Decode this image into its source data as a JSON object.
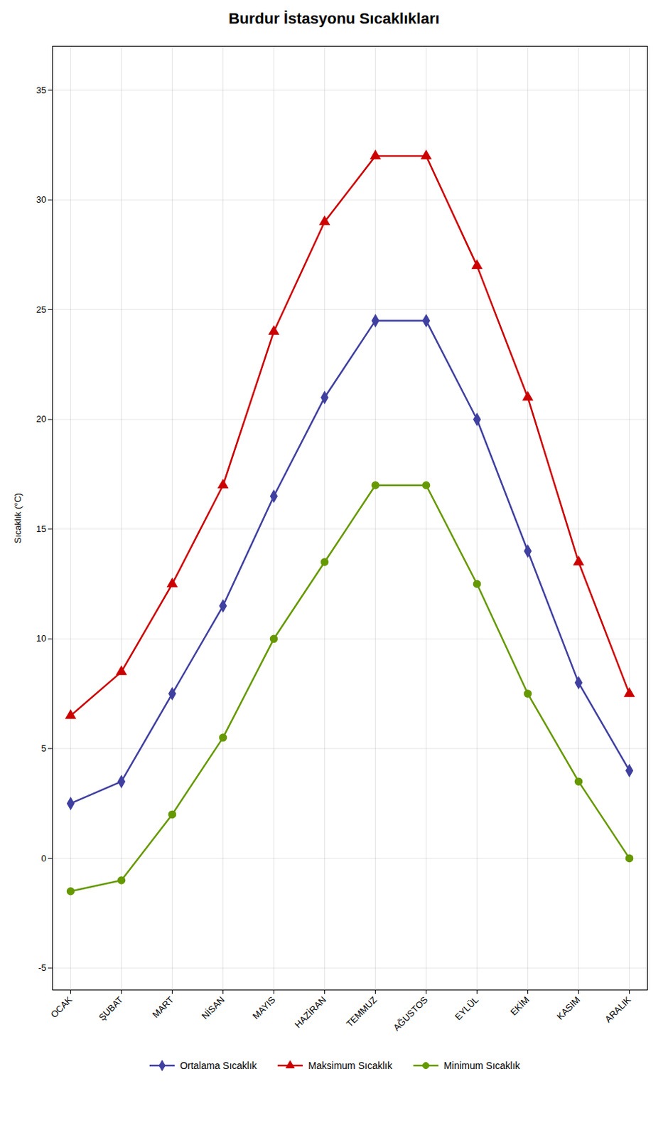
{
  "chart_data": {
    "type": "line",
    "title": "Burdur İstasyonu Sıcaklıkları",
    "categories": [
      "OCAK",
      "ŞUBAT",
      "MART",
      "NİSAN",
      "MAYIS",
      "HAZİRAN",
      "TEMMUZ",
      "AĞUSTOS",
      "EYLÜL",
      "EKİM",
      "KASIM",
      "ARALIK"
    ],
    "series": [
      {
        "name": "Ortalama Sıcaklık",
        "color": "#4040A0",
        "marker": "diamond",
        "values": [
          2.5,
          3.5,
          7.5,
          11.5,
          16.5,
          21.0,
          24.5,
          24.5,
          20.0,
          14.0,
          8.0,
          4.0
        ]
      },
      {
        "name": "Maksimum Sıcaklık",
        "color": "#CC0000",
        "marker": "triangle",
        "values": [
          6.5,
          8.5,
          12.5,
          17.0,
          24.0,
          29.0,
          32.0,
          32.0,
          27.0,
          21.0,
          13.5,
          7.5
        ]
      },
      {
        "name": "Minimum Sıcaklık",
        "color": "#669900",
        "marker": "circle",
        "values": [
          -1.5,
          -1.0,
          2.0,
          5.5,
          10.0,
          13.5,
          17.0,
          17.0,
          12.5,
          7.5,
          3.5,
          0.0
        ]
      }
    ],
    "ylabel": "Sıcaklık (°C)",
    "ylim": [
      -6,
      37
    ],
    "yticks": [
      -5,
      0,
      5,
      10,
      15,
      20,
      25,
      30,
      35
    ],
    "grid": true,
    "legend": "bottom"
  }
}
